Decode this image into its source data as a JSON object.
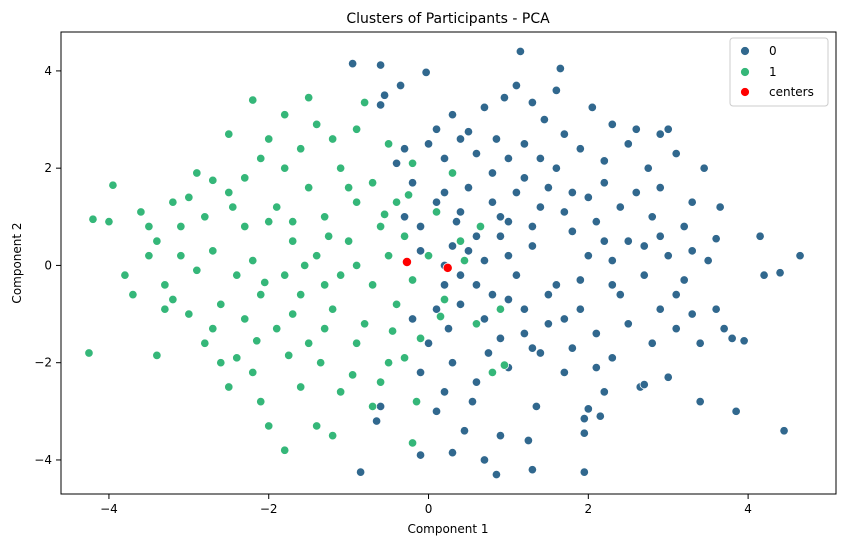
{
  "chart_data": {
    "type": "scatter",
    "title": "Clusters of Participants - PCA",
    "xlabel": "Component 1",
    "ylabel": "Component 2",
    "xlim": [
      -4.6,
      5.1
    ],
    "ylim": [
      -4.7,
      4.8
    ],
    "xticks": [
      -4,
      -2,
      0,
      2,
      4
    ],
    "yticks": [
      -4,
      -2,
      0,
      2,
      4
    ],
    "xtick_labels": [
      "−4",
      "−2",
      "0",
      "2",
      "4"
    ],
    "ytick_labels": [
      "−4",
      "−2",
      "0",
      "2",
      "4"
    ],
    "grid": false,
    "legend_position": "top-right",
    "legend": [
      {
        "label": "0",
        "color": "#31688e"
      },
      {
        "label": "1",
        "color": "#35b779"
      },
      {
        "label": "centers",
        "color": "#ff0000"
      }
    ],
    "series": [
      {
        "name": "0",
        "color": "#31688e",
        "points": [
          [
            1.15,
            4.4
          ],
          [
            -0.95,
            4.15
          ],
          [
            -0.6,
            4.12
          ],
          [
            1.65,
            4.05
          ],
          [
            -0.03,
            3.97
          ],
          [
            -0.35,
            3.7
          ],
          [
            1.1,
            3.7
          ],
          [
            1.6,
            3.6
          ],
          [
            -0.55,
            3.5
          ],
          [
            0.95,
            3.45
          ],
          [
            1.3,
            3.35
          ],
          [
            2.05,
            3.25
          ],
          [
            -0.6,
            3.3
          ],
          [
            0.7,
            3.25
          ],
          [
            0.3,
            3.1
          ],
          [
            1.45,
            3.0
          ],
          [
            2.3,
            2.9
          ],
          [
            2.9,
            2.7
          ],
          [
            3.0,
            2.8
          ],
          [
            3.1,
            2.3
          ],
          [
            0.1,
            2.8
          ],
          [
            0.5,
            2.75
          ],
          [
            0.85,
            2.6
          ],
          [
            1.7,
            2.7
          ],
          [
            2.6,
            2.8
          ],
          [
            1.2,
            2.5
          ],
          [
            1.9,
            2.4
          ],
          [
            2.5,
            2.5
          ],
          [
            0.6,
            2.3
          ],
          [
            1.4,
            2.2
          ],
          [
            2.2,
            2.15
          ],
          [
            2.75,
            2.0
          ],
          [
            3.45,
            2.0
          ],
          [
            3.65,
            1.2
          ],
          [
            4.15,
            0.6
          ],
          [
            4.4,
            -0.15
          ],
          [
            4.65,
            0.2
          ],
          [
            4.45,
            -3.4
          ],
          [
            3.85,
            -3.0
          ],
          [
            3.95,
            -1.55
          ],
          [
            3.7,
            -1.3
          ],
          [
            3.3,
            -1.0
          ],
          [
            3.4,
            -2.8
          ],
          [
            3.0,
            -2.3
          ],
          [
            2.65,
            -2.5
          ],
          [
            2.0,
            -2.95
          ],
          [
            1.95,
            -3.15
          ],
          [
            2.15,
            -3.1
          ],
          [
            1.95,
            -3.45
          ],
          [
            1.95,
            -4.25
          ],
          [
            1.3,
            -4.2
          ],
          [
            0.85,
            -4.3
          ],
          [
            0.7,
            -4.0
          ],
          [
            -0.1,
            -3.9
          ],
          [
            0.3,
            -3.85
          ],
          [
            -0.85,
            -4.25
          ],
          [
            0.45,
            -3.4
          ],
          [
            0.9,
            -3.5
          ],
          [
            1.25,
            -3.6
          ],
          [
            0.1,
            -3.0
          ],
          [
            -0.6,
            -2.9
          ],
          [
            -0.65,
            -3.2
          ],
          [
            1.35,
            -2.9
          ],
          [
            2.1,
            -2.1
          ],
          [
            2.7,
            -2.45
          ],
          [
            3.8,
            -1.5
          ],
          [
            4.2,
            -0.2
          ],
          [
            3.6,
            0.55
          ],
          [
            3.3,
            0.3
          ],
          [
            2.9,
            0.6
          ],
          [
            3.1,
            -0.6
          ],
          [
            2.8,
            -1.6
          ],
          [
            2.3,
            -1.9
          ],
          [
            1.8,
            -1.7
          ],
          [
            1.2,
            -1.4
          ],
          [
            0.7,
            -1.1
          ],
          [
            0.4,
            -0.8
          ],
          [
            0.2,
            -0.4
          ],
          [
            0.5,
            0.3
          ],
          [
            0.9,
            0.6
          ],
          [
            1.3,
            0.8
          ],
          [
            1.7,
            1.1
          ],
          [
            2.1,
            0.9
          ],
          [
            2.5,
            0.5
          ],
          [
            2.3,
            0.1
          ],
          [
            1.9,
            -0.3
          ],
          [
            1.5,
            -0.6
          ],
          [
            1.1,
            -0.2
          ],
          [
            0.7,
            0.1
          ],
          [
            0.35,
            0.9
          ],
          [
            0.1,
            1.3
          ],
          [
            -0.2,
            1.7
          ],
          [
            -0.4,
            2.1
          ],
          [
            0.2,
            2.2
          ],
          [
            0.8,
            1.9
          ],
          [
            1.1,
            1.5
          ],
          [
            1.5,
            1.6
          ],
          [
            2.0,
            1.4
          ],
          [
            2.4,
            1.2
          ],
          [
            2.8,
            1.0
          ],
          [
            3.2,
            0.8
          ],
          [
            3.5,
            0.1
          ],
          [
            3.2,
            -0.3
          ],
          [
            2.9,
            -0.9
          ],
          [
            2.5,
            -1.2
          ],
          [
            2.1,
            -1.4
          ],
          [
            1.7,
            -1.1
          ],
          [
            1.4,
            -1.8
          ],
          [
            1.0,
            -2.1
          ],
          [
            0.6,
            -2.4
          ],
          [
            0.3,
            -2.0
          ],
          [
            0.0,
            -1.6
          ],
          [
            -0.2,
            -1.1
          ],
          [
            0.1,
            -0.9
          ],
          [
            0.4,
            -0.2
          ],
          [
            0.8,
            -0.6
          ],
          [
            1.2,
            -0.9
          ],
          [
            1.6,
            -0.4
          ],
          [
            2.0,
            0.2
          ],
          [
            2.4,
            -0.6
          ],
          [
            2.7,
            -0.2
          ],
          [
            3.0,
            0.2
          ],
          [
            1.0,
            0.2
          ],
          [
            1.3,
            0.4
          ],
          [
            0.6,
            0.6
          ],
          [
            0.3,
            0.4
          ],
          [
            0.9,
            1.0
          ],
          [
            1.4,
            1.2
          ],
          [
            1.8,
            0.7
          ],
          [
            2.2,
            0.5
          ],
          [
            2.6,
            1.5
          ],
          [
            1.6,
            2.0
          ],
          [
            1.0,
            2.2
          ],
          [
            0.5,
            1.6
          ],
          [
            0.2,
            0.0
          ],
          [
            0.6,
            -0.4
          ],
          [
            1.0,
            -0.7
          ],
          [
            1.5,
            -1.2
          ],
          [
            1.9,
            -0.9
          ],
          [
            2.3,
            -0.4
          ],
          [
            2.7,
            0.4
          ],
          [
            1.2,
            1.8
          ],
          [
            0.8,
            1.3
          ],
          [
            0.4,
            1.1
          ],
          [
            -0.1,
            0.8
          ],
          [
            0.0,
            2.5
          ],
          [
            0.4,
            2.6
          ],
          [
            -0.3,
            2.4
          ],
          [
            0.9,
            -1.5
          ],
          [
            1.3,
            -1.7
          ],
          [
            1.7,
            -2.2
          ],
          [
            2.2,
            -2.6
          ],
          [
            0.55,
            -2.8
          ],
          [
            0.2,
            -2.6
          ],
          [
            -0.1,
            -2.2
          ],
          [
            3.6,
            -0.9
          ],
          [
            3.4,
            -1.6
          ],
          [
            3.1,
            -1.3
          ],
          [
            2.9,
            1.6
          ],
          [
            3.3,
            1.3
          ],
          [
            2.2,
            1.7
          ],
          [
            1.8,
            1.5
          ],
          [
            1.0,
            0.9
          ],
          [
            0.2,
            1.5
          ],
          [
            -0.3,
            1.0
          ],
          [
            -0.1,
            0.3
          ],
          [
            0.25,
            -1.3
          ],
          [
            0.75,
            -1.8
          ]
        ]
      },
      {
        "name": "1",
        "color": "#35b779",
        "points": [
          [
            -4.25,
            -1.8
          ],
          [
            -4.2,
            0.95
          ],
          [
            -4.0,
            0.9
          ],
          [
            -3.95,
            1.65
          ],
          [
            -3.4,
            -1.85
          ],
          [
            -3.3,
            -0.9
          ],
          [
            -3.4,
            0.5
          ],
          [
            -3.6,
            1.1
          ],
          [
            -3.2,
            1.3
          ],
          [
            -2.9,
            1.9
          ],
          [
            -2.7,
            1.75
          ],
          [
            -2.5,
            2.7
          ],
          [
            -2.2,
            3.4
          ],
          [
            -1.8,
            3.1
          ],
          [
            -1.5,
            3.45
          ],
          [
            -0.8,
            3.35
          ],
          [
            -0.9,
            2.8
          ],
          [
            -1.2,
            2.6
          ],
          [
            -1.6,
            2.4
          ],
          [
            -2.1,
            2.2
          ],
          [
            -2.5,
            1.5
          ],
          [
            -2.8,
            1.0
          ],
          [
            -3.1,
            0.2
          ],
          [
            -3.3,
            -0.4
          ],
          [
            -3.0,
            -1.0
          ],
          [
            -2.8,
            -1.6
          ],
          [
            -2.4,
            -1.9
          ],
          [
            -2.5,
            -2.5
          ],
          [
            -2.1,
            -2.8
          ],
          [
            -1.8,
            -3.8
          ],
          [
            -1.4,
            -3.3
          ],
          [
            -1.2,
            -3.5
          ],
          [
            -2.0,
            -3.3
          ],
          [
            -1.1,
            -2.6
          ],
          [
            -0.6,
            -2.4
          ],
          [
            -0.15,
            -2.8
          ],
          [
            -0.2,
            -3.65
          ],
          [
            -0.5,
            -2.0
          ],
          [
            -0.9,
            -1.6
          ],
          [
            -1.3,
            -1.3
          ],
          [
            -1.7,
            -1.0
          ],
          [
            -2.1,
            -0.6
          ],
          [
            -2.4,
            -0.2
          ],
          [
            -2.7,
            0.3
          ],
          [
            -2.3,
            0.8
          ],
          [
            -1.9,
            1.2
          ],
          [
            -1.5,
            1.6
          ],
          [
            -1.1,
            2.0
          ],
          [
            -0.7,
            1.7
          ],
          [
            -0.4,
            1.3
          ],
          [
            -0.6,
            0.8
          ],
          [
            -1.0,
            0.5
          ],
          [
            -1.4,
            0.2
          ],
          [
            -1.8,
            -0.2
          ],
          [
            -2.2,
            0.1
          ],
          [
            -1.6,
            -0.6
          ],
          [
            -1.2,
            -0.9
          ],
          [
            -0.8,
            -1.2
          ],
          [
            -0.4,
            -0.8
          ],
          [
            -0.2,
            -0.3
          ],
          [
            -0.5,
            0.2
          ],
          [
            -0.9,
            0.0
          ],
          [
            -1.3,
            -0.4
          ],
          [
            -1.7,
            0.5
          ],
          [
            -2.0,
            0.9
          ],
          [
            -2.6,
            -0.8
          ],
          [
            -2.9,
            -0.1
          ],
          [
            -3.1,
            0.8
          ],
          [
            -2.3,
            1.8
          ],
          [
            -1.8,
            2.0
          ],
          [
            -1.3,
            1.0
          ],
          [
            -0.9,
            1.3
          ],
          [
            -0.3,
            0.6
          ],
          [
            0.0,
            0.2
          ],
          [
            -0.1,
            -1.5
          ],
          [
            -0.7,
            -0.4
          ],
          [
            -1.1,
            -0.2
          ],
          [
            -1.5,
            -1.6
          ],
          [
            -1.9,
            -1.3
          ],
          [
            -2.3,
            -1.1
          ],
          [
            -2.7,
            -1.3
          ],
          [
            -3.5,
            0.2
          ],
          [
            -3.7,
            -0.6
          ],
          [
            -3.8,
            -0.2
          ],
          [
            -3.0,
            1.4
          ],
          [
            -2.0,
            2.6
          ],
          [
            -1.4,
            2.9
          ],
          [
            -0.5,
            2.5
          ],
          [
            -0.2,
            2.1
          ],
          [
            0.3,
            1.9
          ],
          [
            0.1,
            1.1
          ],
          [
            0.4,
            0.5
          ],
          [
            0.2,
            -0.7
          ],
          [
            0.6,
            -1.2
          ],
          [
            0.9,
            -0.9
          ],
          [
            0.8,
            -2.2
          ],
          [
            0.95,
            -2.05
          ],
          [
            -0.3,
            -1.9
          ],
          [
            -0.7,
            -2.9
          ],
          [
            -1.6,
            -2.5
          ],
          [
            -2.2,
            -2.2
          ],
          [
            -2.6,
            -2.0
          ],
          [
            -3.2,
            -0.7
          ],
          [
            -3.5,
            0.8
          ],
          [
            -2.45,
            1.2
          ],
          [
            -1.7,
            0.9
          ],
          [
            -1.0,
            1.6
          ],
          [
            -0.55,
            1.05
          ],
          [
            -0.25,
            1.45
          ],
          [
            -1.25,
            0.6
          ],
          [
            -1.55,
            0.0
          ],
          [
            -2.05,
            -0.35
          ],
          [
            -1.35,
            -2.0
          ],
          [
            -0.95,
            -2.25
          ],
          [
            -1.75,
            -1.85
          ],
          [
            -2.15,
            -1.55
          ],
          [
            -0.45,
            -1.35
          ],
          [
            0.15,
            -1.05
          ],
          [
            0.45,
            0.1
          ],
          [
            0.65,
            0.8
          ]
        ]
      },
      {
        "name": "centers",
        "color": "#ff0000",
        "points": [
          [
            -0.27,
            0.07
          ],
          [
            0.24,
            -0.05
          ]
        ]
      }
    ]
  }
}
